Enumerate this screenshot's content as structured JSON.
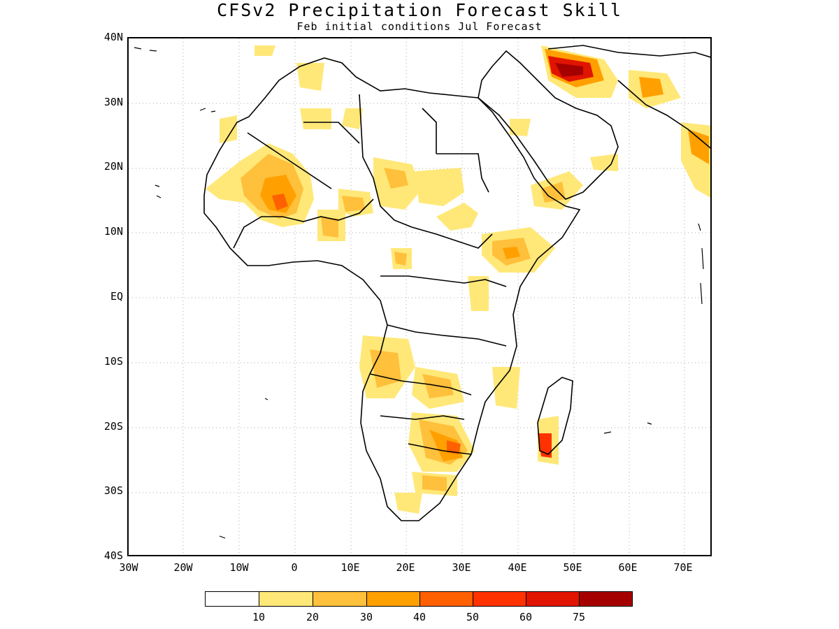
{
  "map": {
    "title": "CFSv2 Precipitation Forecast Skill",
    "subtitle": "Feb initial conditions  Jul Forecast",
    "lat_labels": [
      "40N",
      "30N",
      "20N",
      "10N",
      "EQ",
      "10S",
      "20S",
      "30S",
      "40S"
    ],
    "lon_labels": [
      "30W",
      "20W",
      "10W",
      "0",
      "10E",
      "20E",
      "30E",
      "40E",
      "50E",
      "60E",
      "70E"
    ],
    "legend": {
      "colors": [
        "#ffffff",
        "#ffe878",
        "#ffc03c",
        "#ffa000",
        "#ff6000",
        "#ff3200",
        "#e11400",
        "#a50000"
      ],
      "tick_labels": [
        "10",
        "20",
        "30",
        "40",
        "50",
        "60",
        "75"
      ]
    }
  }
}
